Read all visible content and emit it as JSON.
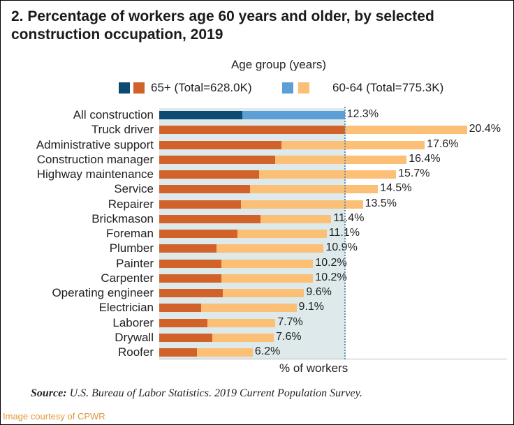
{
  "chart_data": {
    "type": "bar",
    "orientation": "horizontal",
    "stacked": true,
    "title": "2. Percentage of workers age 60 years and older, by selected construction occupation, 2019",
    "legend_title": "Age group (years)",
    "xlabel": "% of workers",
    "xlim": [
      0,
      21.5
    ],
    "grid": false,
    "legend_placement": "top",
    "categories": [
      "All construction",
      "Truck driver",
      "Administrative support",
      "Construction manager",
      "Highway maintenance",
      "Service",
      "Repairer",
      "Brickmason",
      "Foreman",
      "Plumber",
      "Painter",
      "Carpenter",
      "Operating engineer",
      "Electrician",
      "Laborer",
      "Drywall",
      "Roofer"
    ],
    "totals": [
      12.3,
      20.4,
      17.6,
      16.4,
      15.7,
      14.5,
      13.5,
      11.4,
      11.1,
      10.9,
      10.2,
      10.2,
      9.6,
      9.1,
      7.7,
      7.6,
      6.2
    ],
    "total_labels": [
      "12.3%",
      "20.4%",
      "17.6%",
      "16.4%",
      "15.7%",
      "14.5%",
      "13.5%",
      "11.4%",
      "11.1%",
      "10.9%",
      "10.2%",
      "10.2%",
      "9.6%",
      "9.1%",
      "7.7%",
      "7.6%",
      "6.2%"
    ],
    "series": [
      {
        "name": "65+ (Total=628.0K)",
        "colors": [
          "#0d4a73",
          "#d0622a"
        ],
        "values": [
          5.5,
          12.3,
          8.1,
          7.7,
          6.6,
          6.0,
          5.4,
          6.7,
          5.2,
          3.8,
          4.1,
          4.1,
          4.2,
          2.8,
          3.2,
          3.5,
          2.5
        ]
      },
      {
        "name": "60-64 (Total=775.3K)",
        "colors": [
          "#5b9fd6",
          "#fbbf76"
        ],
        "values": [
          6.8,
          8.1,
          9.5,
          8.7,
          9.1,
          8.5,
          8.1,
          4.7,
          5.9,
          7.1,
          6.1,
          6.1,
          5.4,
          6.3,
          4.5,
          4.1,
          3.7
        ]
      }
    ],
    "highlight_category": "All construction",
    "reference_line": 12.3
  },
  "source_label": "Source:",
  "source_text": " U.S. Bureau of Labor Statistics. 2019 Current Population Survey.",
  "credit": "Image courtesy of CPWR"
}
